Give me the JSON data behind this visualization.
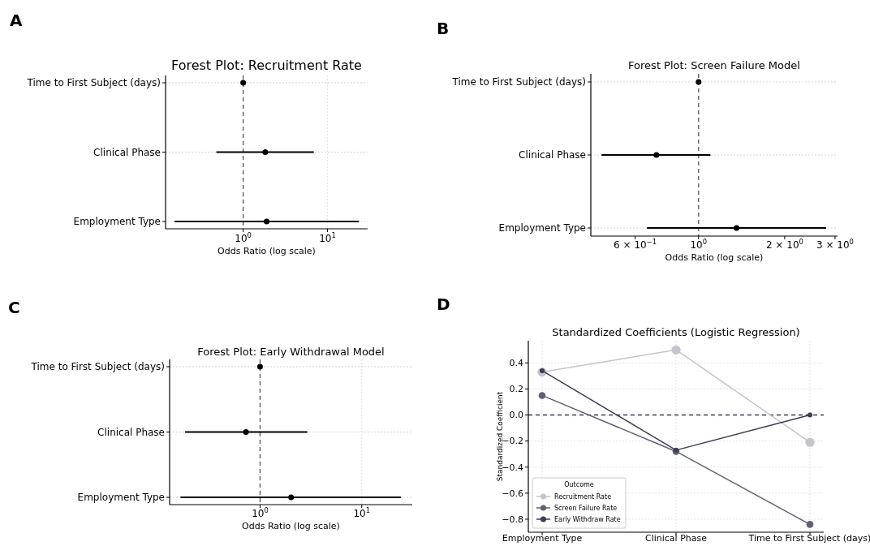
{
  "chart_data": [
    {
      "type": "scatter",
      "orientation": "horizontal",
      "title": "Forest Plot: Recruitment Rate",
      "xlabel": "Odds Ratio (log scale)",
      "categories": [
        "Time to First Subject (days)",
        "Clinical Phase",
        "Employment Type"
      ],
      "values": [
        1.0,
        1.83,
        1.9
      ],
      "errors": [
        null,
        [
          0.48,
          6.9
        ],
        [
          0.153,
          23.7
        ]
      ],
      "color": "#000000",
      "log": "x",
      "xlim": [
        0.12,
        30
      ],
      "xticks": [
        {
          "value": 1,
          "label": "10$^{0}$"
        },
        {
          "value": 10,
          "label": "10$^{1}$"
        }
      ],
      "grid": true,
      "marker": "circle",
      "ref_lines": [
        {
          "axis": "x",
          "value": 1,
          "line_style": "dashed",
          "color": "#555555"
        }
      ],
      "annotations": [
        "A"
      ]
    },
    {
      "type": "scatter",
      "orientation": "horizontal",
      "title": "Forest Plot: Screen Failure Model",
      "xlabel": "Odds Ratio (log scale)",
      "categories": [
        "Time to First Subject (days)",
        "Clinical Phase",
        "Employment Type"
      ],
      "values": [
        1.0,
        0.712,
        1.357
      ],
      "errors": [
        null,
        [
          0.458,
          1.1
        ],
        [
          0.66,
          2.79
        ]
      ],
      "color": "#000000",
      "log": "x",
      "xlim": [
        0.42,
        3.06
      ],
      "xticks": [
        {
          "value": 0.6,
          "label": "6 × 10$^{−1}$"
        },
        {
          "value": 1,
          "label": "10$^{0}$"
        },
        {
          "value": 2,
          "label": "2 × 10$^{0}$"
        },
        {
          "value": 3,
          "label": "3 × 10$^{0}$"
        }
      ],
      "grid": "y",
      "marker": "circle",
      "ref_lines": [
        {
          "axis": "x",
          "value": 1,
          "line_style": "dashed",
          "color": "#555555"
        }
      ],
      "annotations": [
        "B"
      ]
    },
    {
      "type": "scatter",
      "orientation": "horizontal",
      "title": "Forest Plot: Early Withdrawal Model",
      "xlabel": "Odds Ratio (log scale)",
      "categories": [
        "Time to First Subject (days)",
        "Clinical Phase",
        "Employment Type"
      ],
      "values": [
        1.0,
        0.727,
        2.02
      ],
      "errors": [
        null,
        [
          0.183,
          2.92
        ],
        [
          0.165,
          24.3
        ]
      ],
      "color": "#000000",
      "log": "x",
      "xlim": [
        0.129,
        31.4
      ],
      "xticks": [
        {
          "value": 1,
          "label": "10$^{0}$"
        },
        {
          "value": 10,
          "label": "10$^{1}$"
        }
      ],
      "grid": true,
      "marker": "circle",
      "ref_lines": [
        {
          "axis": "x",
          "value": 1,
          "line_style": "dashed",
          "color": "#555555"
        }
      ],
      "annotations": [
        "C"
      ]
    },
    {
      "type": "line",
      "title": "Standardized Coefficients (Logistic Regression)",
      "ylabel": "Standardized Coefficient",
      "categories": [
        "Employment Type",
        "Clinical Phase",
        "Time to First Subject (days)"
      ],
      "series": [
        {
          "name": "Recruitment Rate",
          "color": "#c4c4cc",
          "values": [
            0.33,
            0.5,
            -0.21
          ]
        },
        {
          "name": "Screen Failure Rate",
          "color": "#5f5f75",
          "values": [
            0.15,
            -0.28,
            -0.84
          ]
        },
        {
          "name": "Early Withdraw Rate",
          "color": "#3c3c52",
          "values": [
            0.34,
            -0.27,
            0.0
          ]
        }
      ],
      "ylim": [
        -0.9,
        0.57
      ],
      "yticks": [
        {
          "value": -0.8,
          "label": "−0.8"
        },
        {
          "value": -0.6,
          "label": "−0.6"
        },
        {
          "value": -0.4,
          "label": "−0.4"
        },
        {
          "value": -0.2,
          "label": "−0.2"
        },
        {
          "value": 0,
          "label": "0.0"
        },
        {
          "value": 0.2,
          "label": "0.2"
        },
        {
          "value": 0.4,
          "label": "0.4"
        }
      ],
      "grid": true,
      "marker": "circle",
      "legend": "bottom left",
      "legend_title": "Outcome",
      "ref_lines": [
        {
          "axis": "y",
          "value": 0,
          "line_style": "dashed",
          "color": "#3c3c52"
        }
      ],
      "annotations": [
        "D"
      ]
    }
  ]
}
